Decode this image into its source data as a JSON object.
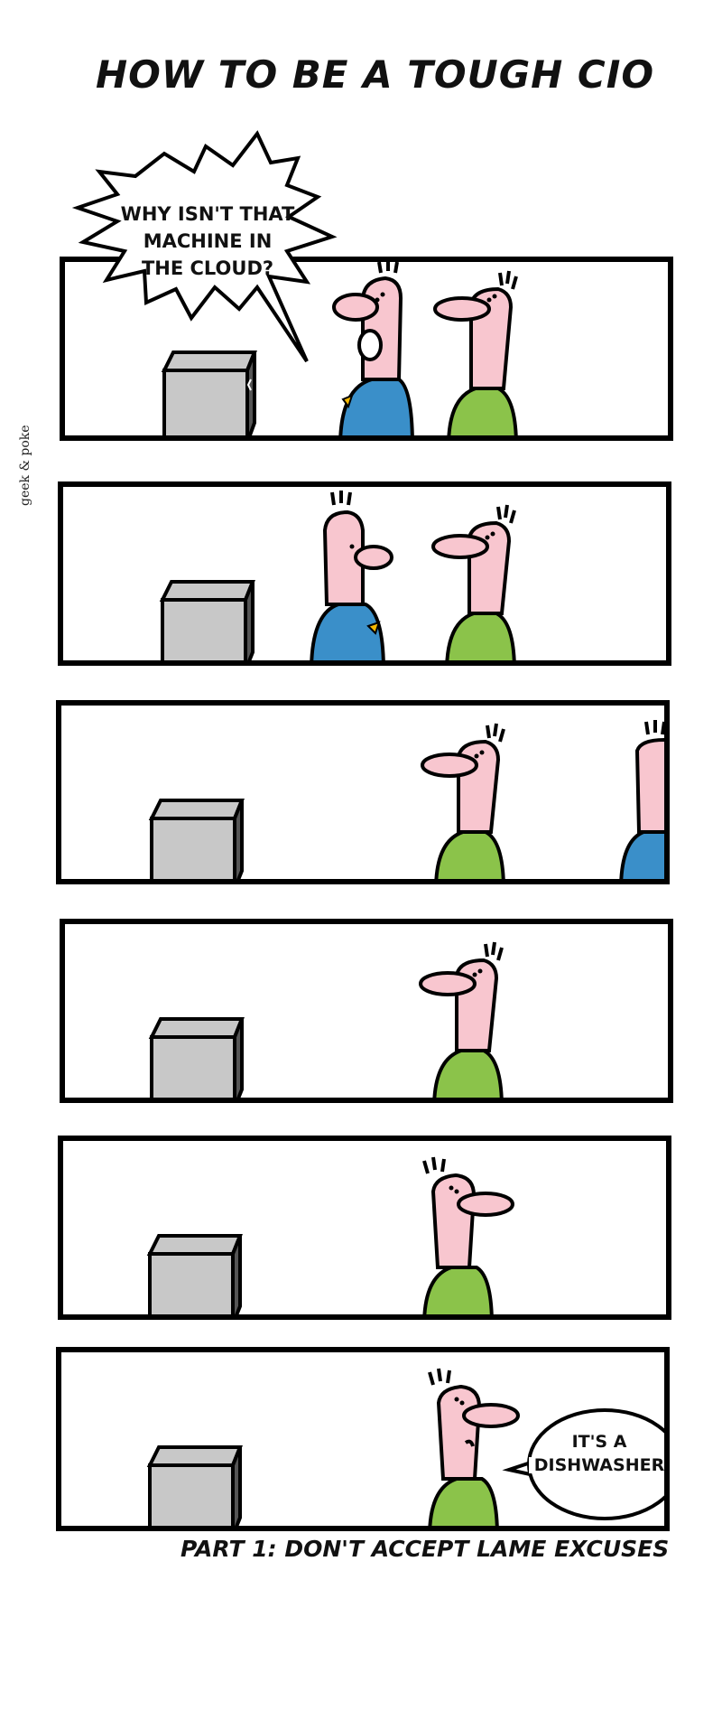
{
  "title": "HOW TO BE A TOUGH CIO",
  "credit": "geek & poke",
  "caption": "PART 1: DON'T ACCEPT LAME EXCUSES",
  "panels": [
    {
      "speech": [
        "WHY ISN'T THAT",
        "MACHINE IN",
        "THE CLOUD?"
      ]
    },
    {},
    {},
    {},
    {},
    {
      "speech": [
        "IT'S A",
        "DISHWASHER"
      ]
    }
  ],
  "colors": {
    "skin": "#f8c6cf",
    "boss_shirt": "#3a8fc9",
    "worker_shirt": "#8bc34a",
    "machine": "#c8c8c8",
    "outline": "#000000"
  }
}
